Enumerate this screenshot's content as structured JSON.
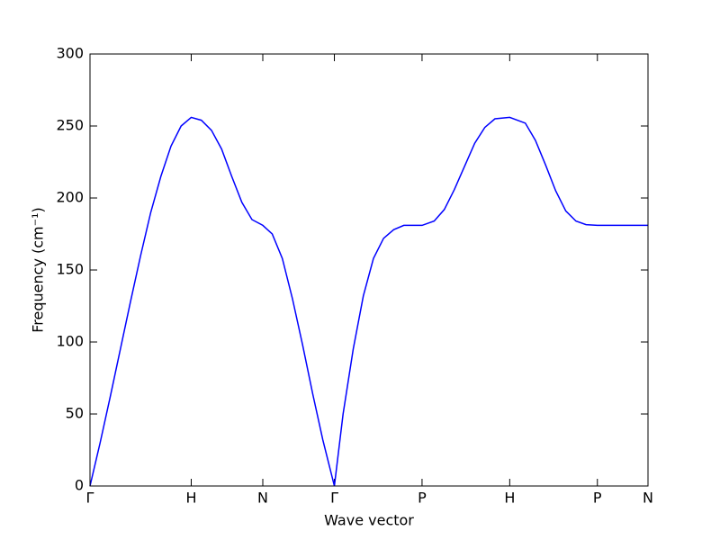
{
  "chart_data": {
    "type": "line",
    "xlabel": "Wave vector",
    "ylabel": "Frequency (cm⁻¹)",
    "x": [
      0,
      0.1,
      0.2,
      0.3,
      0.4,
      0.5,
      0.6,
      0.7,
      0.8,
      0.9,
      1.0,
      1.1,
      1.2,
      1.3,
      1.4,
      1.5,
      1.6,
      1.707,
      1.8,
      1.9,
      2.0,
      2.1,
      2.2,
      2.3,
      2.414,
      2.5,
      2.6,
      2.7,
      2.8,
      2.9,
      3.0,
      3.1,
      3.28,
      3.4,
      3.5,
      3.6,
      3.7,
      3.8,
      3.9,
      4.0,
      4.146,
      4.3,
      4.4,
      4.5,
      4.6,
      4.7,
      4.8,
      4.9,
      5.012,
      5.2,
      5.4,
      5.512
    ],
    "series": [
      {
        "color": "#0000ff",
        "values": [
          0,
          30,
          62,
          95,
          128,
          160,
          190,
          215,
          236,
          250,
          256,
          254,
          247,
          234,
          215,
          197,
          185,
          181,
          175,
          158,
          130,
          98,
          64,
          32,
          0,
          50,
          95,
          132,
          158,
          172,
          178,
          181,
          181,
          184,
          192,
          206,
          222,
          238,
          249,
          255,
          256,
          252,
          240,
          223,
          205,
          191,
          184,
          181.5,
          181,
          181,
          181,
          181
        ]
      }
    ],
    "xlim": [
      0,
      5.512
    ],
    "xticks": [
      {
        "value": 0,
        "label": "Γ"
      },
      {
        "value": 1.0,
        "label": "H"
      },
      {
        "value": 1.707,
        "label": "N"
      },
      {
        "value": 2.414,
        "label": "Γ"
      },
      {
        "value": 3.28,
        "label": "P"
      },
      {
        "value": 4.146,
        "label": "H"
      },
      {
        "value": 5.012,
        "label": "P"
      },
      {
        "value": 5.512,
        "label": "N"
      }
    ],
    "ylim": [
      0,
      300
    ],
    "yticks": [
      0,
      50,
      100,
      150,
      200,
      250,
      300
    ]
  }
}
